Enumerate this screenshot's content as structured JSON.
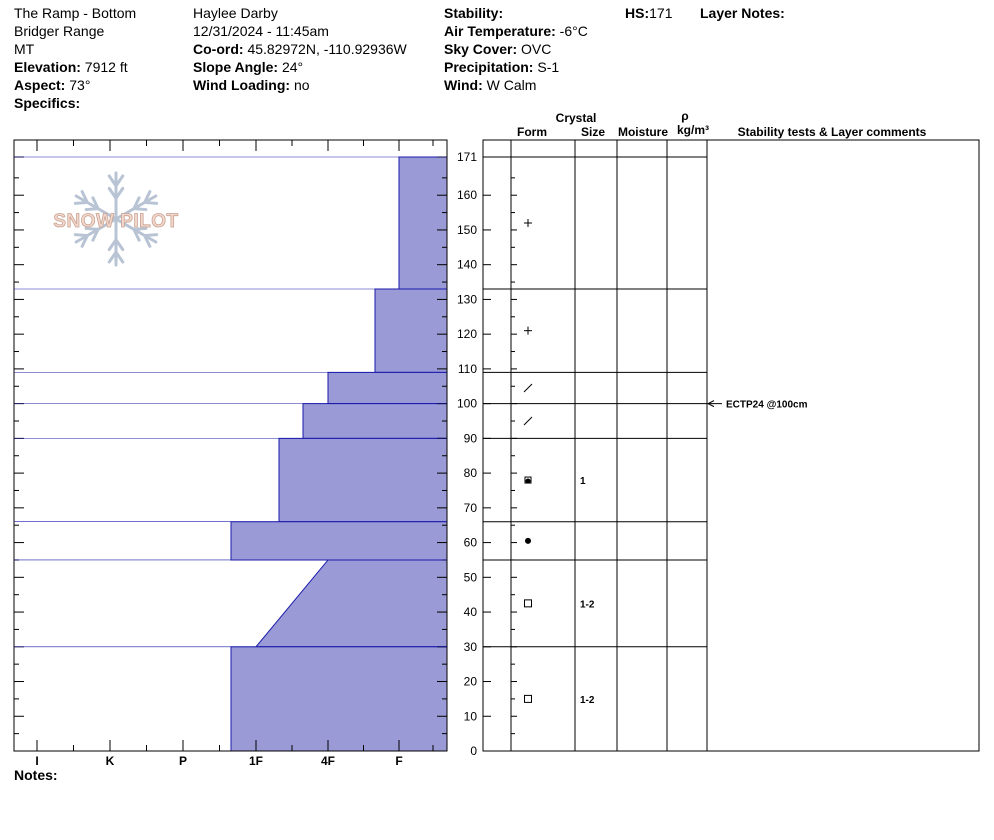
{
  "header": {
    "location": "The Ramp - Bottom",
    "range": "Bridger Range",
    "state": "MT",
    "elevation_label": "Elevation:",
    "elevation_value": "7912 ft",
    "aspect_label": "Aspect:",
    "aspect_value": "73°",
    "specifics_label": "Specifics:",
    "observer": "Haylee Darby",
    "datetime": "12/31/2024 - 11:45am",
    "coord_label": "Co-ord:",
    "coord_value": "45.82972N, -110.92936W",
    "slope_label": "Slope Angle:",
    "slope_value": "24°",
    "wind_loading_label": "Wind Loading:",
    "wind_loading_value": "no",
    "stability_label": "Stability:",
    "air_temp_label": "Air Temperature:",
    "air_temp_value": "-6°C",
    "sky_label": "Sky Cover:",
    "sky_value": "OVC",
    "precip_label": "Precipitation:",
    "precip_value": "S-1",
    "wind_label": "Wind:",
    "wind_value": "W Calm",
    "hs_label": "HS:",
    "hs_value": "171",
    "layer_notes_label": "Layer Notes:",
    "notes_label": "Notes:"
  },
  "logo_text": "SNOW PILOT",
  "columns": {
    "crystal": "Crystal",
    "form": "Form",
    "size": "Size",
    "moisture": "Moisture",
    "rho": "ρ",
    "density_unit": "kg/m³",
    "stability": "Stability tests & Layer comments"
  },
  "colors": {
    "fill": "#9a9ad6",
    "edge": "#1a1aaa"
  },
  "chart_data": {
    "type": "area",
    "title": "",
    "ylabel": "",
    "ylim": [
      0,
      171
    ],
    "y_ticks": [
      0,
      10,
      20,
      30,
      40,
      50,
      60,
      70,
      80,
      90,
      100,
      110,
      120,
      130,
      140,
      150,
      160,
      171
    ],
    "x_categories": [
      "I",
      "K",
      "P",
      "1F",
      "4F",
      "F"
    ],
    "hardness_profile": [
      {
        "top": 171,
        "bottom": 133,
        "hardness_top": "F",
        "hardness_bottom": "F"
      },
      {
        "top": 133,
        "bottom": 109,
        "hardness_top": "F+",
        "hardness_bottom": "F+"
      },
      {
        "top": 109,
        "bottom": 100,
        "hardness_top": "4F",
        "hardness_bottom": "4F"
      },
      {
        "top": 100,
        "bottom": 90,
        "hardness_top": "4F+",
        "hardness_bottom": "4F+"
      },
      {
        "top": 90,
        "bottom": 66,
        "hardness_top": "1F-",
        "hardness_bottom": "1F-"
      },
      {
        "top": 66,
        "bottom": 55,
        "hardness_top": "1F+",
        "hardness_bottom": "1F+"
      },
      {
        "top": 55,
        "bottom": 30,
        "hardness_top": "4F",
        "hardness_bottom": "1F"
      },
      {
        "top": 30,
        "bottom": 0,
        "hardness_top": "1F+",
        "hardness_bottom": "1F+"
      }
    ],
    "layers": [
      {
        "top": 171,
        "bottom": 133,
        "form_symbol": "+",
        "size": ""
      },
      {
        "top": 133,
        "bottom": 109,
        "form_symbol": "+",
        "size": ""
      },
      {
        "top": 109,
        "bottom": 100,
        "form_symbol": "/",
        "size": ""
      },
      {
        "top": 100,
        "bottom": 90,
        "form_symbol": "/",
        "size": ""
      },
      {
        "top": 90,
        "bottom": 66,
        "form_symbol": "rounding-faceted",
        "size": "1"
      },
      {
        "top": 66,
        "bottom": 55,
        "form_symbol": "melt-freeze",
        "size": ""
      },
      {
        "top": 55,
        "bottom": 30,
        "form_symbol": "faceted",
        "size": "1-2"
      },
      {
        "top": 30,
        "bottom": 0,
        "form_symbol": "faceted",
        "size": "1-2"
      }
    ],
    "stability_tests": [
      {
        "depth": 100,
        "label": "ECTP24 @100cm"
      }
    ]
  }
}
